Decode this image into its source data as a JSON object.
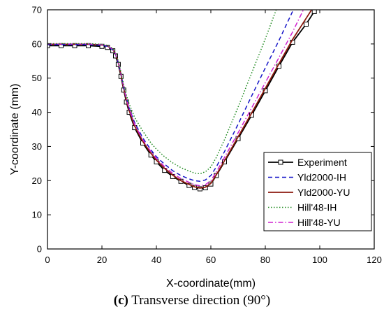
{
  "caption": {
    "letter": "(c)",
    "text": "Transverse direction (90°)"
  },
  "chart_data": {
    "type": "line",
    "title": "",
    "xlabel": "X-coordinate(mm)",
    "ylabel": "Y-coordinate (mm)",
    "xlim": [
      0,
      120
    ],
    "ylim": [
      0,
      70
    ],
    "xticks": [
      0,
      20,
      40,
      60,
      80,
      100,
      120
    ],
    "yticks": [
      0,
      10,
      20,
      30,
      40,
      50,
      60,
      70
    ],
    "grid": false,
    "legend_position": "bottom-right",
    "series": [
      {
        "name": "Experiment",
        "color": "#000000",
        "style": "solid",
        "marker": "square-open",
        "x": [
          0,
          5,
          10,
          15,
          20,
          22,
          24,
          25,
          26,
          27,
          28,
          29,
          30,
          32,
          35,
          38,
          40,
          43,
          46,
          49,
          52,
          54,
          56,
          58,
          60,
          62,
          65,
          70,
          75,
          80,
          85,
          90,
          95,
          98
        ],
        "y": [
          59.5,
          59.5,
          59.5,
          59.5,
          59.3,
          59.0,
          58.0,
          56.5,
          54.0,
          50.5,
          46.5,
          43.0,
          40.0,
          35.5,
          31.0,
          27.5,
          25.5,
          23.0,
          21.2,
          19.8,
          18.6,
          18.0,
          17.6,
          17.9,
          19.0,
          21.5,
          25.5,
          32.3,
          39.2,
          46.3,
          53.5,
          60.5,
          65.8,
          69.5
        ]
      },
      {
        "name": "Yld2000-IH",
        "color": "#1515c8",
        "style": "dashed",
        "x": [
          0,
          5,
          10,
          15,
          20,
          22,
          24,
          25,
          26,
          27,
          28,
          29,
          30,
          32,
          35,
          38,
          40,
          43,
          46,
          49,
          52,
          54,
          56,
          58,
          60,
          62,
          65,
          70,
          75,
          80,
          85,
          90
        ],
        "y": [
          59.8,
          59.8,
          59.8,
          59.8,
          59.6,
          59.3,
          58.3,
          57.0,
          54.5,
          51.2,
          47.3,
          44.0,
          41.2,
          37.0,
          32.5,
          29.0,
          27.0,
          24.8,
          22.9,
          21.5,
          20.5,
          20.0,
          19.8,
          20.2,
          21.5,
          24.0,
          28.5,
          36.5,
          44.8,
          53.0,
          61.0,
          69.5
        ]
      },
      {
        "name": "Yld2000-YU",
        "color": "#8b1a0e",
        "style": "solid",
        "x": [
          0,
          5,
          10,
          15,
          20,
          22,
          24,
          25,
          26,
          27,
          28,
          29,
          30,
          32,
          35,
          38,
          40,
          43,
          46,
          49,
          52,
          54,
          56,
          58,
          60,
          62,
          65,
          70,
          75,
          80,
          85,
          90,
          95,
          97
        ],
        "y": [
          59.9,
          59.9,
          59.9,
          59.9,
          59.7,
          59.4,
          58.4,
          57.0,
          54.6,
          51.0,
          47.0,
          43.5,
          40.5,
          36.0,
          31.5,
          28.0,
          26.0,
          23.6,
          21.6,
          20.0,
          18.9,
          18.2,
          17.8,
          18.1,
          19.2,
          21.7,
          25.8,
          32.8,
          39.8,
          47.0,
          54.2,
          61.3,
          67.5,
          70.0
        ]
      },
      {
        "name": "Hill'48-IH",
        "color": "#1f8a1f",
        "style": "dotted",
        "x": [
          0,
          5,
          10,
          15,
          20,
          22,
          24,
          25,
          26,
          27,
          28,
          29,
          30,
          32,
          35,
          38,
          40,
          43,
          46,
          49,
          52,
          54,
          56,
          58,
          60,
          62,
          65,
          70,
          75,
          80,
          84
        ],
        "y": [
          60.1,
          60.1,
          60.1,
          60.1,
          59.9,
          59.6,
          58.7,
          57.3,
          55.0,
          51.7,
          48.0,
          45.0,
          42.5,
          38.5,
          34.5,
          31.0,
          29.2,
          27.0,
          25.2,
          23.8,
          22.8,
          22.2,
          22.0,
          22.6,
          24.0,
          26.8,
          32.0,
          41.5,
          51.5,
          61.5,
          70.0
        ]
      },
      {
        "name": "Hill'48-YU",
        "color": "#d020d0",
        "style": "dashdot",
        "x": [
          0,
          5,
          10,
          15,
          20,
          22,
          24,
          25,
          26,
          27,
          28,
          29,
          30,
          32,
          35,
          38,
          40,
          43,
          46,
          49,
          52,
          54,
          56,
          58,
          60,
          62,
          65,
          70,
          75,
          80,
          85,
          90,
          94
        ],
        "y": [
          60.0,
          60.0,
          60.0,
          60.0,
          59.8,
          59.5,
          58.5,
          57.1,
          54.7,
          51.3,
          47.4,
          44.0,
          41.0,
          36.5,
          32.0,
          28.5,
          26.5,
          24.1,
          22.1,
          20.6,
          19.5,
          18.8,
          18.5,
          18.8,
          20.0,
          22.5,
          26.8,
          34.0,
          41.3,
          48.7,
          56.0,
          63.5,
          70.0
        ]
      }
    ]
  }
}
